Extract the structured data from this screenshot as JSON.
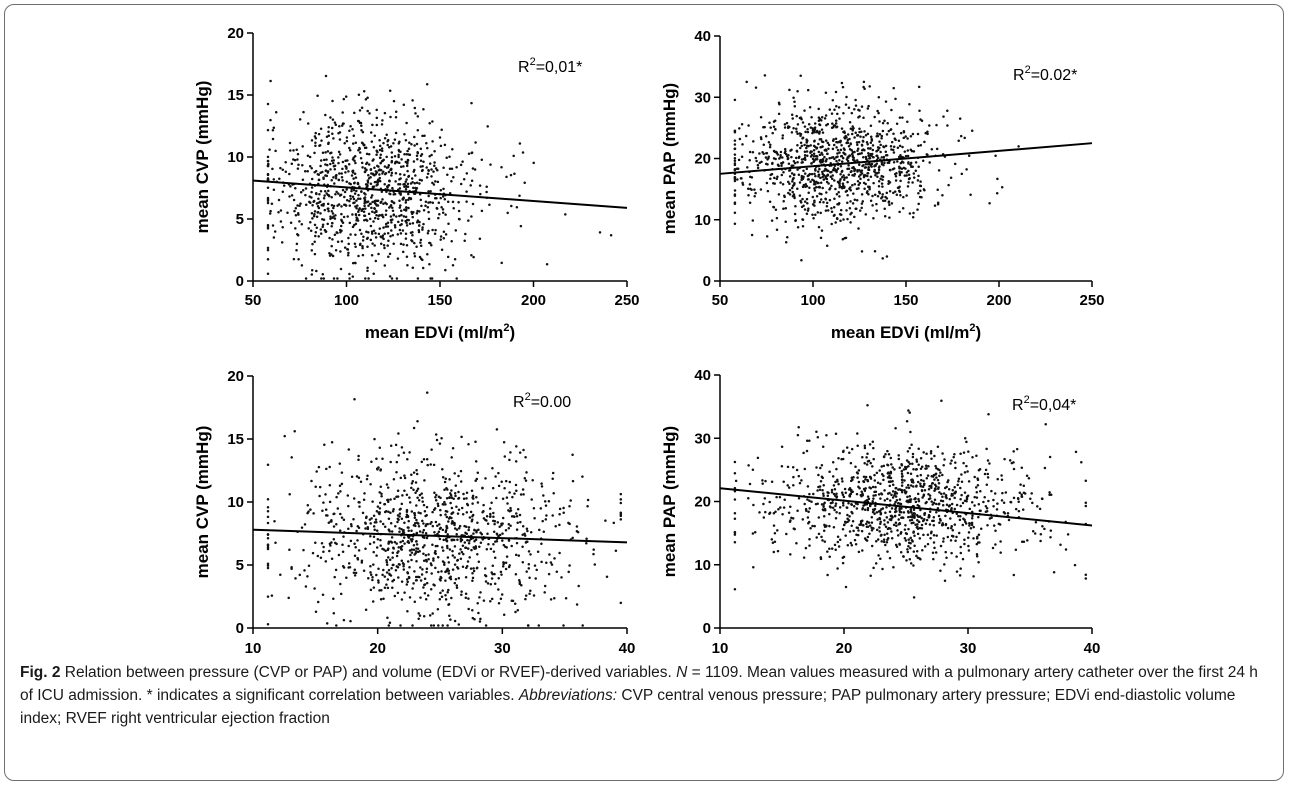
{
  "caption": {
    "figure_label": "Fig. 2",
    "part1": " Relation between pressure (CVP or PAP) and volume (EDVi or RVEF)-derived variables. ",
    "n_symbol": "N",
    "part2": " = 1109. Mean values measured with a pulmonary artery catheter over the first 24 h of ICU admission. * indicates a significant correlation between variables. ",
    "abbrev_label": "Abbreviations:",
    "part3": " CVP central venous pressure; PAP pulmonary artery pressure; EDVi end-diastolic volume index; RVEF right ventricular ejection fraction"
  },
  "chart_data": [
    {
      "type": "scatter",
      "panel": "top-left",
      "xlabel": "mean EDVi (ml/m²)",
      "ylabel": "mean CVP  (mmHg)",
      "xlim": [
        50,
        250
      ],
      "ylim": [
        0,
        20
      ],
      "xticks": [
        50,
        100,
        150,
        200,
        250
      ],
      "yticks": [
        0,
        5,
        10,
        15,
        20
      ],
      "annotation": "R²=0,01*",
      "n_points": 1109,
      "point_cloud": {
        "x_center": 112,
        "x_spread": 26,
        "y_center": 7.4,
        "y_spread": 3.3
      },
      "regression": {
        "x": [
          50,
          250
        ],
        "y": [
          8.1,
          5.9
        ]
      }
    },
    {
      "type": "scatter",
      "panel": "top-right",
      "xlabel": "mean EDVi (ml/m²)",
      "ylabel": "mean PAP  (mmHg)",
      "xlim": [
        50,
        250
      ],
      "ylim": [
        0,
        40
      ],
      "xticks": [
        50,
        100,
        150,
        200,
        250
      ],
      "yticks": [
        0,
        10,
        20,
        30,
        40
      ],
      "annotation": "R²=0.02*",
      "n_points": 1109,
      "point_cloud": {
        "x_center": 112,
        "x_spread": 26,
        "y_center": 19.2,
        "y_spread": 4.9
      },
      "regression": {
        "x": [
          50,
          250
        ],
        "y": [
          17.5,
          22.5
        ]
      }
    },
    {
      "type": "scatter",
      "panel": "bottom-left",
      "xlabel": "mean RVEF (%)",
      "ylabel": "mean CVP (mmHg)",
      "xlim": [
        10,
        40
      ],
      "ylim": [
        0,
        20
      ],
      "xticks": [
        10,
        20,
        30,
        40
      ],
      "yticks": [
        0,
        5,
        10,
        15,
        20
      ],
      "annotation": "R²=0.00",
      "n_points": 1109,
      "point_cloud": {
        "x_center": 24.5,
        "x_spread": 5.2,
        "y_center": 7.4,
        "y_spread": 3.3
      },
      "regression": {
        "x": [
          10,
          40
        ],
        "y": [
          7.8,
          6.8
        ]
      }
    },
    {
      "type": "scatter",
      "panel": "bottom-right",
      "xlabel": "mean RVEF (%)",
      "ylabel": "mean PAP (mmHg)",
      "xlim": [
        10,
        40
      ],
      "ylim": [
        0,
        40
      ],
      "xticks": [
        10,
        20,
        30,
        40
      ],
      "yticks": [
        0,
        10,
        20,
        30,
        40
      ],
      "annotation": "R²=0,04*",
      "n_points": 1109,
      "point_cloud": {
        "x_center": 24.5,
        "x_spread": 5.2,
        "y_center": 19.2,
        "y_spread": 4.9
      },
      "regression": {
        "x": [
          10,
          40
        ],
        "y": [
          22.1,
          16.2
        ]
      }
    }
  ]
}
